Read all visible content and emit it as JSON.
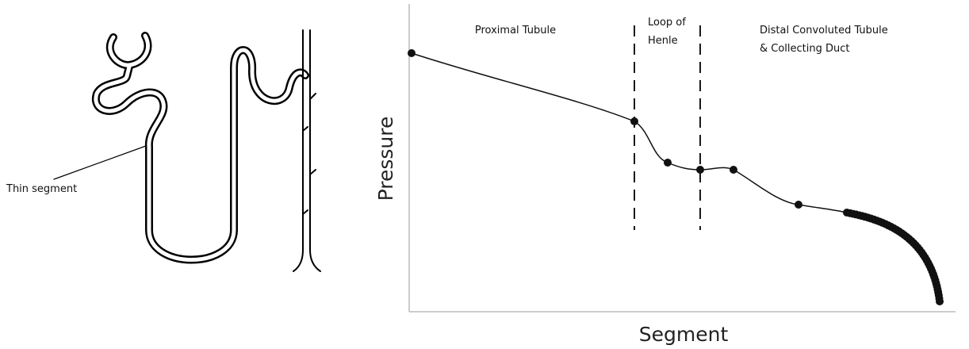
{
  "nephron": {
    "label": "Thin segment"
  },
  "graph": {
    "y_label": "Pressure",
    "x_label": "Segment",
    "regions": [
      {
        "lines": [
          "Proximal Tubule"
        ]
      },
      {
        "lines": [
          "Loop of",
          "Henle"
        ]
      },
      {
        "lines": [
          "Distal Convoluted Tubule",
          "& Collecting Duct"
        ]
      }
    ]
  }
}
